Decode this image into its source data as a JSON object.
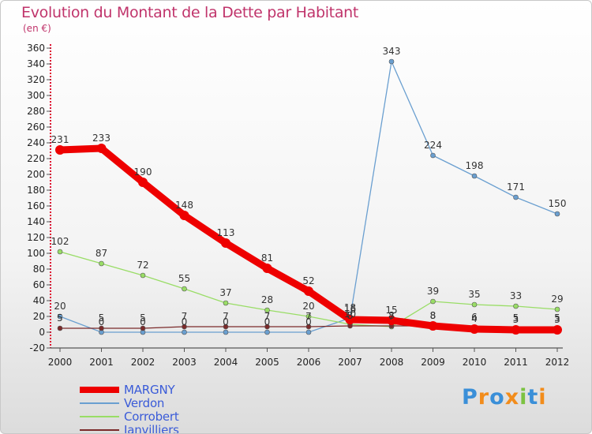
{
  "header": {
    "title": "Evolution du Montant de la Dette par Habitant",
    "subtitle": "(en €)"
  },
  "logo": {
    "text": "Proxiti"
  },
  "chart_data": {
    "type": "line",
    "x": [
      "2000",
      "2001",
      "2002",
      "2003",
      "2004",
      "2005",
      "2006",
      "2007",
      "2008",
      "2009",
      "2010",
      "2011",
      "2012"
    ],
    "yticks": [
      -20,
      0,
      20,
      40,
      60,
      80,
      100,
      120,
      140,
      160,
      180,
      200,
      220,
      240,
      260,
      280,
      300,
      320,
      340,
      360
    ],
    "ylim": [
      -20,
      360
    ],
    "grid": false,
    "legend_position": "bottom-left",
    "series": [
      {
        "name": "MARGNY",
        "color": "#ee0000",
        "values": [
          231,
          233,
          190,
          148,
          113,
          81,
          52,
          16,
          15,
          8,
          4,
          3,
          3
        ],
        "labels": [
          "231",
          "233",
          "190",
          "148",
          "113",
          "81",
          "52",
          "16",
          "15",
          "8",
          "4",
          "3",
          "3"
        ]
      },
      {
        "name": "Verdon",
        "color": "#6a9fd0",
        "values": [
          20,
          0,
          0,
          0,
          0,
          0,
          0,
          18,
          343,
          224,
          198,
          171,
          150
        ],
        "labels": [
          "20",
          "0",
          "0",
          "0",
          "0",
          "0",
          "0",
          "18",
          "343",
          "224",
          "198",
          "171",
          "150"
        ]
      },
      {
        "name": "Corrobert",
        "color": "#99dd66",
        "values": [
          102,
          87,
          72,
          55,
          37,
          28,
          20,
          10,
          7,
          39,
          35,
          33,
          29
        ],
        "labels": [
          "102",
          "87",
          "72",
          "55",
          "37",
          "28",
          "20",
          "10",
          "7",
          "39",
          "35",
          "33",
          "29"
        ]
      },
      {
        "name": "Janvilliers",
        "color": "#7b2a2a",
        "values": [
          5,
          5,
          5,
          7,
          7,
          7,
          7,
          8,
          8,
          8,
          6,
          5,
          5
        ],
        "labels": [
          "5",
          "5",
          "5",
          "7",
          "7",
          "7",
          "7",
          "8",
          "8",
          "8",
          "6",
          "5",
          "5"
        ]
      }
    ]
  }
}
